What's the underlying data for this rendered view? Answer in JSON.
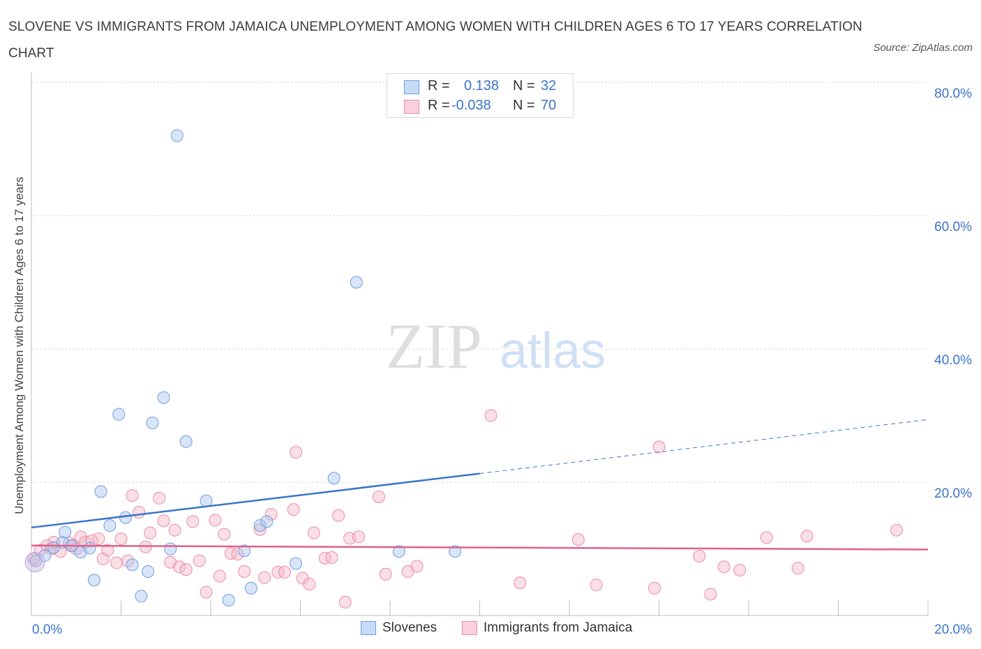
{
  "title": "SLOVENE VS IMMIGRANTS FROM JAMAICA UNEMPLOYMENT AMONG WOMEN WITH CHILDREN AGES 6 TO 17 YEARS CORRELATION CHART",
  "source": "Source: ZipAtlas.com",
  "watermark": {
    "zip": "ZIP",
    "atlas": "atlas"
  },
  "stats": [
    {
      "r_label": "R =",
      "r_value": "0.138",
      "n_label": "N =",
      "n_value": "32",
      "color": "#a8c6f0"
    },
    {
      "r_label": "R =",
      "r_value": "-0.038",
      "n_label": "N =",
      "n_value": "70",
      "color": "#f5b8c8"
    }
  ],
  "legend": [
    {
      "label": "Slovenes",
      "color": "#a8c6f0"
    },
    {
      "label": "Immigrants from Jamaica",
      "color": "#f5b8c8"
    }
  ],
  "chart_data": {
    "type": "scatter",
    "title": "SLOVENE VS IMMIGRANTS FROM JAMAICA UNEMPLOYMENT AMONG WOMEN WITH CHILDREN AGES 6 TO 17 YEARS CORRELATION CHART",
    "xlabel": "",
    "ylabel": "Unemployment Among Women with Children Ages 6 to 17 years",
    "xlim": [
      0,
      20
    ],
    "ylim": [
      0,
      80
    ],
    "x_tick_labels": [
      "0.0%",
      "20.0%"
    ],
    "y_ticks": [
      20,
      40,
      60,
      80
    ],
    "y_tick_labels": [
      "20.0%",
      "40.0%",
      "60.0%",
      "80.0%"
    ],
    "grid": true,
    "series": [
      {
        "name": "Slovenes",
        "color": "#a8c6f0",
        "stroke": "#6f9ee0",
        "trend": {
          "x": [
            0,
            10
          ],
          "y": [
            13.2,
            21.3
          ],
          "dashed_to": [
            20,
            29.4
          ],
          "color": "#3a74c9"
        },
        "points": [
          {
            "x": 0.1,
            "y": 8.2
          },
          {
            "x": 0.3,
            "y": 9.0
          },
          {
            "x": 0.5,
            "y": 10.2
          },
          {
            "x": 0.7,
            "y": 11.0
          },
          {
            "x": 0.75,
            "y": 12.5
          },
          {
            "x": 0.9,
            "y": 10.5
          },
          {
            "x": 1.1,
            "y": 9.5
          },
          {
            "x": 1.3,
            "y": 10.1
          },
          {
            "x": 1.4,
            "y": 5.3
          },
          {
            "x": 1.55,
            "y": 18.6
          },
          {
            "x": 1.75,
            "y": 13.5
          },
          {
            "x": 1.95,
            "y": 30.2
          },
          {
            "x": 2.1,
            "y": 14.7
          },
          {
            "x": 2.25,
            "y": 7.6
          },
          {
            "x": 2.45,
            "y": 2.9
          },
          {
            "x": 2.6,
            "y": 6.6
          },
          {
            "x": 2.7,
            "y": 28.9
          },
          {
            "x": 2.95,
            "y": 32.7
          },
          {
            "x": 3.1,
            "y": 10.0
          },
          {
            "x": 3.25,
            "y": 72.0
          },
          {
            "x": 3.45,
            "y": 26.1
          },
          {
            "x": 3.9,
            "y": 17.2
          },
          {
            "x": 4.4,
            "y": 2.3
          },
          {
            "x": 4.75,
            "y": 9.7
          },
          {
            "x": 4.9,
            "y": 4.1
          },
          {
            "x": 5.1,
            "y": 13.5
          },
          {
            "x": 5.25,
            "y": 14.1
          },
          {
            "x": 5.9,
            "y": 7.8
          },
          {
            "x": 6.75,
            "y": 20.6
          },
          {
            "x": 7.25,
            "y": 50.0
          },
          {
            "x": 8.2,
            "y": 9.6
          },
          {
            "x": 9.45,
            "y": 9.6
          }
        ]
      },
      {
        "name": "Immigrants from Jamaica",
        "color": "#f5b8c8",
        "stroke": "#ec8ba6",
        "trend": {
          "x": [
            0,
            20
          ],
          "y": [
            10.5,
            9.9
          ],
          "color": "#e0608a"
        },
        "points": [
          {
            "x": 0.05,
            "y": 8.5
          },
          {
            "x": 0.2,
            "y": 9.8
          },
          {
            "x": 0.35,
            "y": 10.5
          },
          {
            "x": 0.45,
            "y": 10.0
          },
          {
            "x": 0.5,
            "y": 11.0
          },
          {
            "x": 0.65,
            "y": 9.6
          },
          {
            "x": 0.85,
            "y": 10.9
          },
          {
            "x": 0.9,
            "y": 10.4
          },
          {
            "x": 1.0,
            "y": 10.0
          },
          {
            "x": 1.1,
            "y": 11.8
          },
          {
            "x": 1.2,
            "y": 11.0
          },
          {
            "x": 1.35,
            "y": 11.2
          },
          {
            "x": 1.5,
            "y": 11.5
          },
          {
            "x": 1.6,
            "y": 8.5
          },
          {
            "x": 1.7,
            "y": 9.8
          },
          {
            "x": 1.9,
            "y": 7.9
          },
          {
            "x": 2.0,
            "y": 11.5
          },
          {
            "x": 2.15,
            "y": 8.2
          },
          {
            "x": 2.25,
            "y": 18.0
          },
          {
            "x": 2.4,
            "y": 15.5
          },
          {
            "x": 2.55,
            "y": 10.3
          },
          {
            "x": 2.65,
            "y": 12.4
          },
          {
            "x": 2.85,
            "y": 17.6
          },
          {
            "x": 2.95,
            "y": 14.2
          },
          {
            "x": 3.1,
            "y": 8.0
          },
          {
            "x": 3.2,
            "y": 12.8
          },
          {
            "x": 3.3,
            "y": 7.3
          },
          {
            "x": 3.45,
            "y": 6.9
          },
          {
            "x": 3.6,
            "y": 14.1
          },
          {
            "x": 3.75,
            "y": 8.2
          },
          {
            "x": 3.9,
            "y": 3.5
          },
          {
            "x": 4.1,
            "y": 14.3
          },
          {
            "x": 4.2,
            "y": 5.9
          },
          {
            "x": 4.3,
            "y": 12.2
          },
          {
            "x": 4.45,
            "y": 9.3
          },
          {
            "x": 4.6,
            "y": 9.2
          },
          {
            "x": 4.75,
            "y": 6.6
          },
          {
            "x": 5.1,
            "y": 12.9
          },
          {
            "x": 5.2,
            "y": 5.7
          },
          {
            "x": 5.35,
            "y": 15.2
          },
          {
            "x": 5.5,
            "y": 6.5
          },
          {
            "x": 5.65,
            "y": 6.5
          },
          {
            "x": 5.85,
            "y": 15.9
          },
          {
            "x": 5.9,
            "y": 24.5
          },
          {
            "x": 6.05,
            "y": 5.6
          },
          {
            "x": 6.2,
            "y": 4.7
          },
          {
            "x": 6.3,
            "y": 12.4
          },
          {
            "x": 6.55,
            "y": 8.6
          },
          {
            "x": 6.7,
            "y": 8.7
          },
          {
            "x": 6.85,
            "y": 15.0
          },
          {
            "x": 7.0,
            "y": 2.0
          },
          {
            "x": 7.1,
            "y": 11.6
          },
          {
            "x": 7.3,
            "y": 11.8
          },
          {
            "x": 7.75,
            "y": 17.8
          },
          {
            "x": 7.9,
            "y": 6.2
          },
          {
            "x": 8.4,
            "y": 6.6
          },
          {
            "x": 8.6,
            "y": 7.4
          },
          {
            "x": 10.25,
            "y": 30.0
          },
          {
            "x": 10.9,
            "y": 4.9
          },
          {
            "x": 12.2,
            "y": 11.4
          },
          {
            "x": 12.6,
            "y": 4.6
          },
          {
            "x": 13.9,
            "y": 4.1
          },
          {
            "x": 14.0,
            "y": 25.3
          },
          {
            "x": 14.9,
            "y": 8.9
          },
          {
            "x": 15.15,
            "y": 3.2
          },
          {
            "x": 15.45,
            "y": 7.3
          },
          {
            "x": 15.8,
            "y": 6.8
          },
          {
            "x": 16.4,
            "y": 11.7
          },
          {
            "x": 17.1,
            "y": 7.1
          },
          {
            "x": 17.3,
            "y": 11.9
          },
          {
            "x": 19.3,
            "y": 12.8
          }
        ]
      }
    ]
  }
}
